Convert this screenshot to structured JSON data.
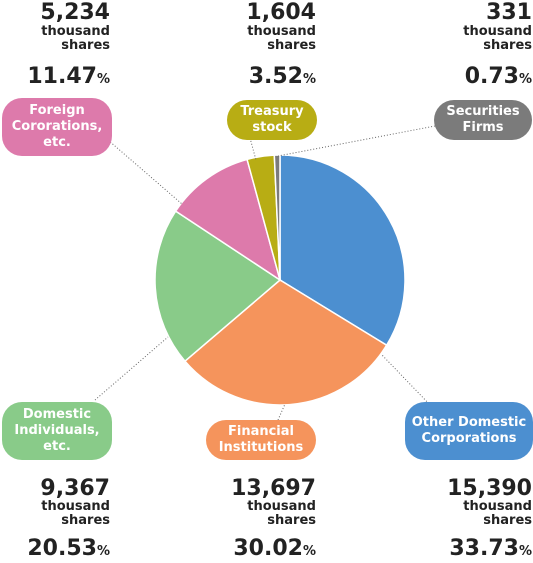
{
  "chart_data": {
    "type": "pie",
    "unit_label": "thousand shares",
    "slices": [
      {
        "label": "Other Domestic Corporations",
        "value": 15390,
        "unit": "thousand shares",
        "percent": "33.73",
        "color": "#4c8fd0"
      },
      {
        "label": "Financial Institutions",
        "value": 13697,
        "unit": "thousand shares",
        "percent": "30.02",
        "color": "#f5945c"
      },
      {
        "label": "Domestic Individuals, etc.",
        "value": 9367,
        "unit": "thousand shares",
        "percent": "20.53",
        "color": "#89cb89"
      },
      {
        "label": "Foreign Cororations, etc.",
        "value": 5234,
        "unit": "thousand shares",
        "percent": "11.47",
        "color": "#dd7aab"
      },
      {
        "label": "Treasury stock",
        "value": 1604,
        "unit": "thousand shares",
        "percent": "3.52",
        "color": "#b8ad14"
      },
      {
        "label": "Securities Firms",
        "value": 331,
        "unit": "thousand shares",
        "percent": "0.73",
        "color": "#7b7b7b"
      }
    ]
  },
  "labels": {
    "foreign": {
      "name": "Foreign Cororations, etc.",
      "value": "5,234",
      "unit1": "thousand",
      "unit2": "shares",
      "percent": "11.47",
      "sign": "%"
    },
    "treasury": {
      "name": "Treasury stock",
      "value": "1,604",
      "unit1": "thousand",
      "unit2": "shares",
      "percent": "3.52",
      "sign": "%"
    },
    "securities": {
      "name": "Securities Firms",
      "value": "331",
      "unit1": "thousand",
      "unit2": "shares",
      "percent": "0.73",
      "sign": "%"
    },
    "individuals": {
      "name": "Domestic Individuals, etc.",
      "value": "9,367",
      "unit1": "thousand",
      "unit2": "shares",
      "percent": "20.53",
      "sign": "%"
    },
    "financial": {
      "name": "Financial Institutions",
      "value": "13,697",
      "unit1": "thousand",
      "unit2": "shares",
      "percent": "30.02",
      "sign": "%"
    },
    "other_domestic": {
      "name": "Other Domestic Corporations",
      "value": "15,390",
      "unit1": "thousand",
      "unit2": "shares",
      "percent": "33.73",
      "sign": "%"
    }
  }
}
